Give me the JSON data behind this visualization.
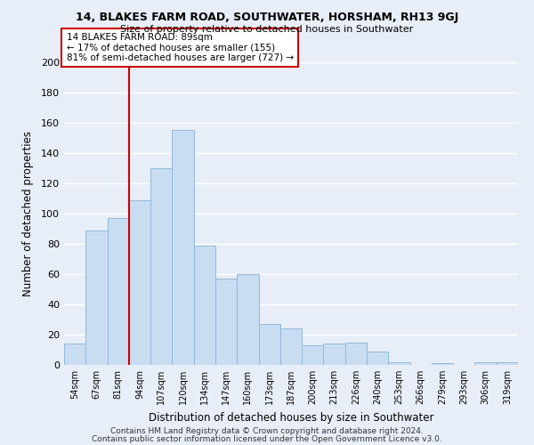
{
  "title": "14, BLAKES FARM ROAD, SOUTHWATER, HORSHAM, RH13 9GJ",
  "subtitle": "Size of property relative to detached houses in Southwater",
  "xlabel": "Distribution of detached houses by size in Southwater",
  "ylabel": "Number of detached properties",
  "bar_labels": [
    "54sqm",
    "67sqm",
    "81sqm",
    "94sqm",
    "107sqm",
    "120sqm",
    "134sqm",
    "147sqm",
    "160sqm",
    "173sqm",
    "187sqm",
    "200sqm",
    "213sqm",
    "226sqm",
    "240sqm",
    "253sqm",
    "266sqm",
    "279sqm",
    "293sqm",
    "306sqm",
    "319sqm"
  ],
  "bar_values": [
    14,
    89,
    97,
    109,
    130,
    155,
    79,
    57,
    60,
    27,
    24,
    13,
    14,
    15,
    9,
    2,
    0,
    1,
    0,
    2,
    2
  ],
  "bar_color": "#c9ddf2",
  "bar_edge_color": "#92b8d8",
  "bg_color": "#e8eef8",
  "grid_color": "#ffffff",
  "vline_color": "#cc0000",
  "annotation_text": "14 BLAKES FARM ROAD: 89sqm\n← 17% of detached houses are smaller (155)\n81% of semi-detached houses are larger (727) →",
  "annotation_box_color": "#ffffff",
  "annotation_box_edge": "#cc0000",
  "footer1": "Contains HM Land Registry data © Crown copyright and database right 2024.",
  "footer2": "Contains public sector information licensed under the Open Government Licence v3.0.",
  "ylim": [
    0,
    200
  ],
  "yticks": [
    0,
    20,
    40,
    60,
    80,
    100,
    120,
    140,
    160,
    180,
    200
  ]
}
